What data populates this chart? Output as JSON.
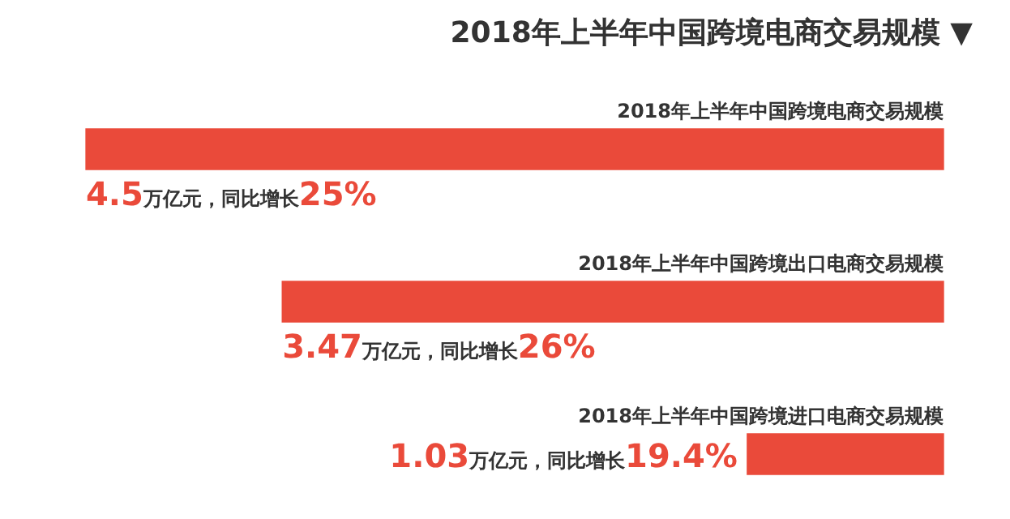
{
  "chart_data": {
    "type": "bar",
    "orientation": "horizontal",
    "title": "2018年上半年中国跨境电商交易规模 ▼",
    "categories": [
      "2018年上半年中国跨境电商交易规模",
      "2018年上半年中国跨境出口电商交易规模",
      "2018年上半年中国跨境进口电商交易规模"
    ],
    "values": [
      4.5,
      3.47,
      1.03
    ],
    "value_labels": [
      "4.5万亿元，同比增长25%",
      "3.47万亿元，同比增长26%",
      "1.03万亿元，同比增长19.4%"
    ],
    "color": "#ea4a3a"
  }
}
